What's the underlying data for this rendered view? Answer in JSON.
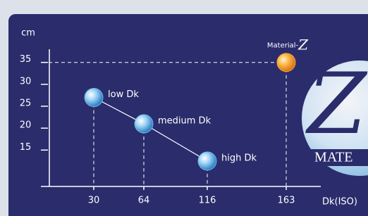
{
  "chart_data": {
    "type": "scatter",
    "y_axis_label": "cm",
    "x_axis_label": "Dk(ISO)",
    "categories": [
      "30",
      "64",
      "116",
      "163"
    ],
    "ylim": [
      6.7,
      38
    ],
    "yticks": [
      15,
      20,
      25,
      30,
      35
    ],
    "series": [
      {
        "color": "#6cb4e6",
        "line": true,
        "values": [
          27,
          21,
          12.5,
          null
        ],
        "labels": [
          "low Dk",
          "medium Dk",
          "high Dk",
          null
        ]
      },
      {
        "color": "#f5a02a",
        "line": false,
        "values": [
          null,
          null,
          null,
          35
        ],
        "labels": [
          null,
          null,
          null,
          "Material-Z"
        ]
      }
    ],
    "logo": {
      "letter": "Z",
      "text": "MATE"
    }
  }
}
